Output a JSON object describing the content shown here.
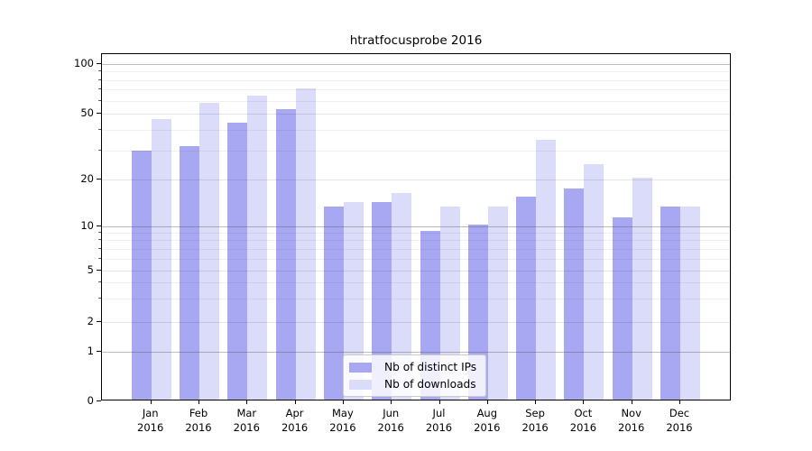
{
  "title": "htratfocusprobe 2016",
  "chart_data": {
    "type": "bar",
    "title": "htratfocusprobe 2016",
    "categories": [
      "Jan 2016",
      "Feb 2016",
      "Mar 2016",
      "Apr 2016",
      "May 2016",
      "Jun 2016",
      "Jul 2016",
      "Aug 2016",
      "Sep 2016",
      "Oct 2016",
      "Nov 2016",
      "Dec 2016"
    ],
    "series": [
      {
        "name": "Nb of distinct IPs",
        "color": "#a8a8f2",
        "values": [
          29,
          31,
          43,
          52,
          13,
          14,
          9,
          10,
          15,
          17,
          11,
          13
        ]
      },
      {
        "name": "Nb of downloads",
        "color": "#dbdbfa",
        "values": [
          45,
          57,
          63,
          69,
          14,
          16,
          13,
          13,
          34,
          24,
          20,
          13
        ]
      }
    ],
    "yticks": [
      0,
      1,
      2,
      5,
      10,
      20,
      50,
      100
    ],
    "minor_gridlines": [
      3,
      4,
      6,
      7,
      8,
      9,
      30,
      40,
      60,
      70,
      80,
      90
    ],
    "scale": "log above 1, linear 0-1",
    "ylim": [
      0,
      115
    ],
    "grid": true,
    "legend_position": "inside lower-center",
    "decade_ticks": [
      1,
      10,
      100
    ]
  },
  "colors": {
    "series_dark": "#a8a8f2",
    "series_light": "#dbdbfa",
    "spine": "#000000",
    "legend_border": "#cccccc"
  }
}
